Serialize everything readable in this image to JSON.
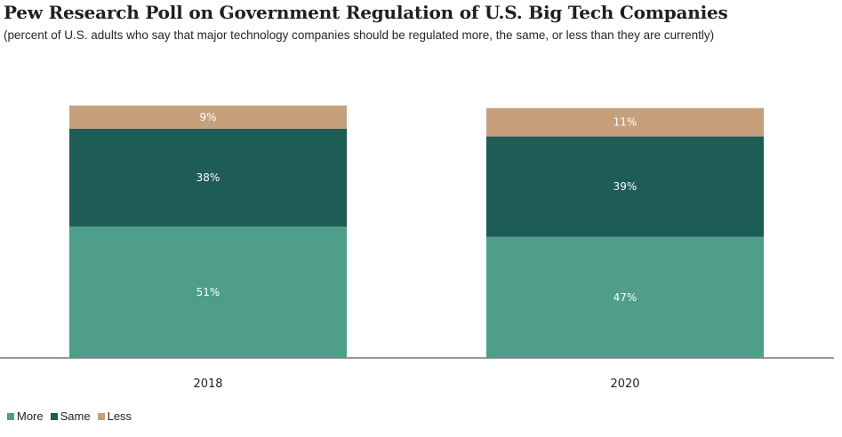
{
  "chart_data": {
    "type": "bar",
    "stacked": true,
    "title": "Pew Research Poll on Government Regulation of U.S. Big Tech Companies",
    "subtitle": "(percent of U.S. adults who say that major technology companies should be regulated more, the same, or less than they are currently)",
    "categories": [
      "2018",
      "2020"
    ],
    "series": [
      {
        "name": "More",
        "values": [
          51,
          47
        ],
        "labels": [
          "51%",
          "47%"
        ],
        "color": "#4e9e8a"
      },
      {
        "name": "Same",
        "values": [
          38,
          39
        ],
        "labels": [
          "38%",
          "39%"
        ],
        "color": "#1e5c56"
      },
      {
        "name": "Less",
        "values": [
          9,
          11
        ],
        "labels": [
          "9%",
          "11%"
        ],
        "color": "#c6a07d"
      }
    ],
    "ylim": [
      0,
      100
    ],
    "xlabel": "",
    "ylabel": "",
    "grid": false,
    "legend_position": "bottom-left"
  }
}
